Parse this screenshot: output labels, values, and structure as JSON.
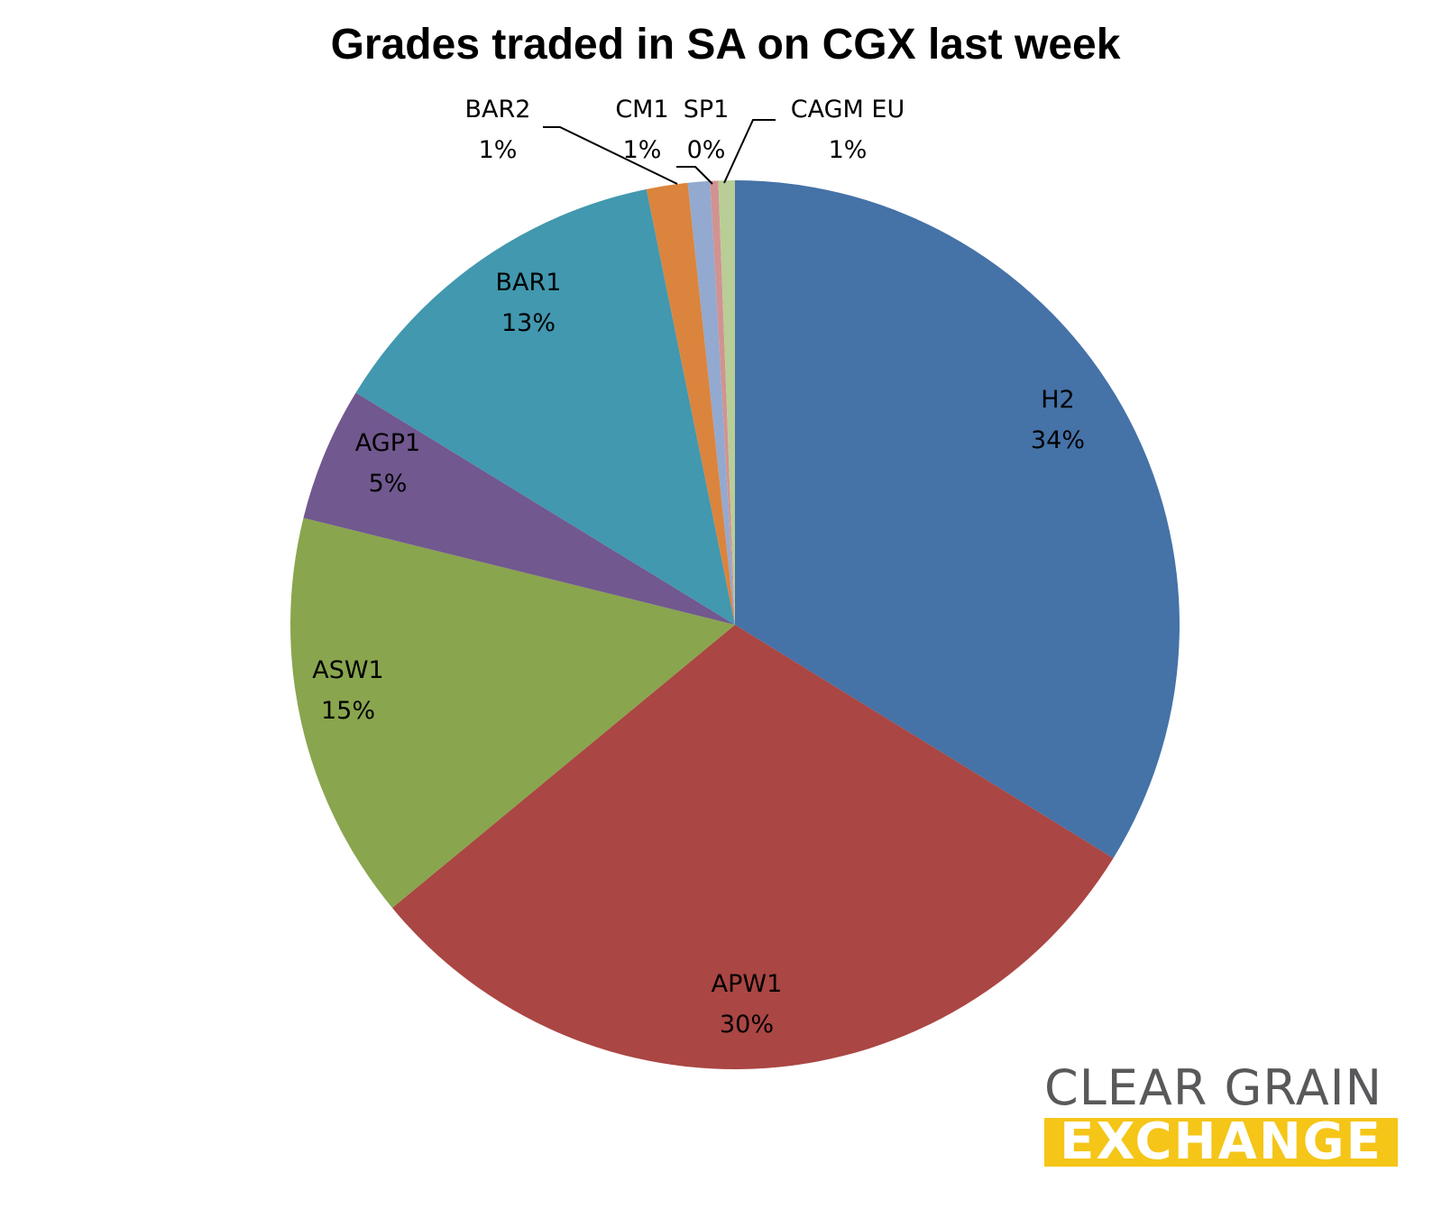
{
  "chart_data": {
    "type": "pie",
    "title": "Grades traded in SA on CGX last week",
    "slices": [
      {
        "label": "H2",
        "percent_label": "34%",
        "value": 33.9,
        "color": "#4572a7"
      },
      {
        "label": "APW1",
        "percent_label": "30%",
        "value": 30.3,
        "color": "#aa4643"
      },
      {
        "label": "ASW1",
        "percent_label": "15%",
        "value": 14.9,
        "color": "#89a54e"
      },
      {
        "label": "AGP1",
        "percent_label": "5%",
        "value": 4.9,
        "color": "#71588f"
      },
      {
        "label": "BAR1",
        "percent_label": "13%",
        "value": 13.1,
        "color": "#4198af"
      },
      {
        "label": "BAR2",
        "percent_label": "1%",
        "value": 1.5,
        "color": "#db843d"
      },
      {
        "label": "CM1",
        "percent_label": "1%",
        "value": 0.8,
        "color": "#93a9cf"
      },
      {
        "label": "SP1",
        "percent_label": "0%",
        "value": 0.3,
        "color": "#d19392"
      },
      {
        "label": "CAGM EU",
        "percent_label": "1%",
        "value": 0.6,
        "color": "#b9cd96"
      }
    ]
  },
  "logo": {
    "line1": "CLEAR GRAIN",
    "line2": "EXCHANGE"
  }
}
